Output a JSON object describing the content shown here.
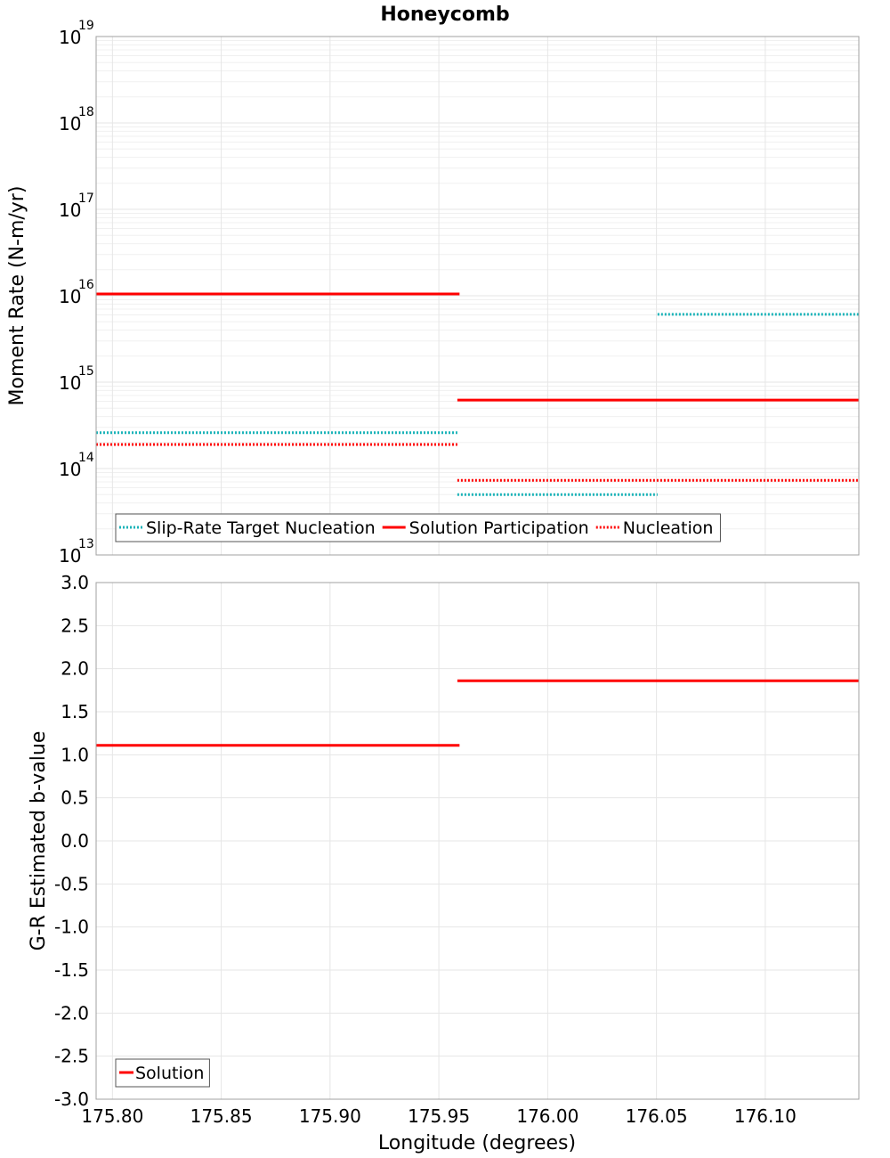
{
  "title": "Honeycomb",
  "colors": {
    "cyan": "#1ab3b8",
    "red": "#ff0000"
  },
  "chart_data": [
    {
      "type": "line",
      "panel": "top",
      "ylabel": "Moment Rate (N-m/yr)",
      "yscale": "log",
      "ylim_exp": [
        13,
        19
      ],
      "ytick_base": "10",
      "ytick_exps": [
        "13",
        "14",
        "15",
        "16",
        "17",
        "18",
        "19"
      ],
      "xlim": [
        175.7925,
        176.143
      ],
      "legend_position": "bottom-left",
      "series": [
        {
          "name": "Slip-Rate Target Nucleation",
          "color": "#1ab3b8",
          "style": "dotted",
          "segments": [
            {
              "x": [
                175.7925,
                175.9585
              ],
              "y": 260000000000000.0
            },
            {
              "x": [
                175.9585,
                176.0505
              ],
              "y": 50000000000000.0
            },
            {
              "x": [
                176.0505,
                176.143
              ],
              "y": 6100000000000000.0
            }
          ]
        },
        {
          "name": "Solution Participation",
          "color": "#ff0000",
          "style": "solid",
          "segments": [
            {
              "x": [
                175.7925,
                175.9595
              ],
              "y": 1.05e+16
            },
            {
              "x": [
                175.9585,
                176.143
              ],
              "y": 620000000000000.0
            }
          ]
        },
        {
          "name": "Nucleation",
          "color": "#ff0000",
          "style": "dotted",
          "segments": [
            {
              "x": [
                175.7925,
                175.9585
              ],
              "y": 190000000000000.0
            },
            {
              "x": [
                175.9585,
                176.143
              ],
              "y": 73000000000000.0
            }
          ]
        }
      ]
    },
    {
      "type": "line",
      "panel": "bottom",
      "xlabel": "Longitude (degrees)",
      "ylabel": "G-R Estimated b-value",
      "ylim": [
        -3.0,
        3.0
      ],
      "yticks": [
        "3.0",
        "2.5",
        "2.0",
        "1.5",
        "1.0",
        "0.5",
        "0.0",
        "-0.5",
        "-1.0",
        "-1.5",
        "-2.0",
        "-2.5",
        "-3.0"
      ],
      "xlim": [
        175.7925,
        176.143
      ],
      "xticks": [
        "175.80",
        "175.85",
        "175.90",
        "175.95",
        "176.00",
        "176.05",
        "176.10"
      ],
      "legend_position": "bottom-left",
      "series": [
        {
          "name": "Solution",
          "color": "#ff0000",
          "style": "solid",
          "segments": [
            {
              "x": [
                175.7925,
                175.9595
              ],
              "y": 1.11
            },
            {
              "x": [
                175.9585,
                176.143
              ],
              "y": 1.86
            }
          ]
        }
      ]
    }
  ]
}
